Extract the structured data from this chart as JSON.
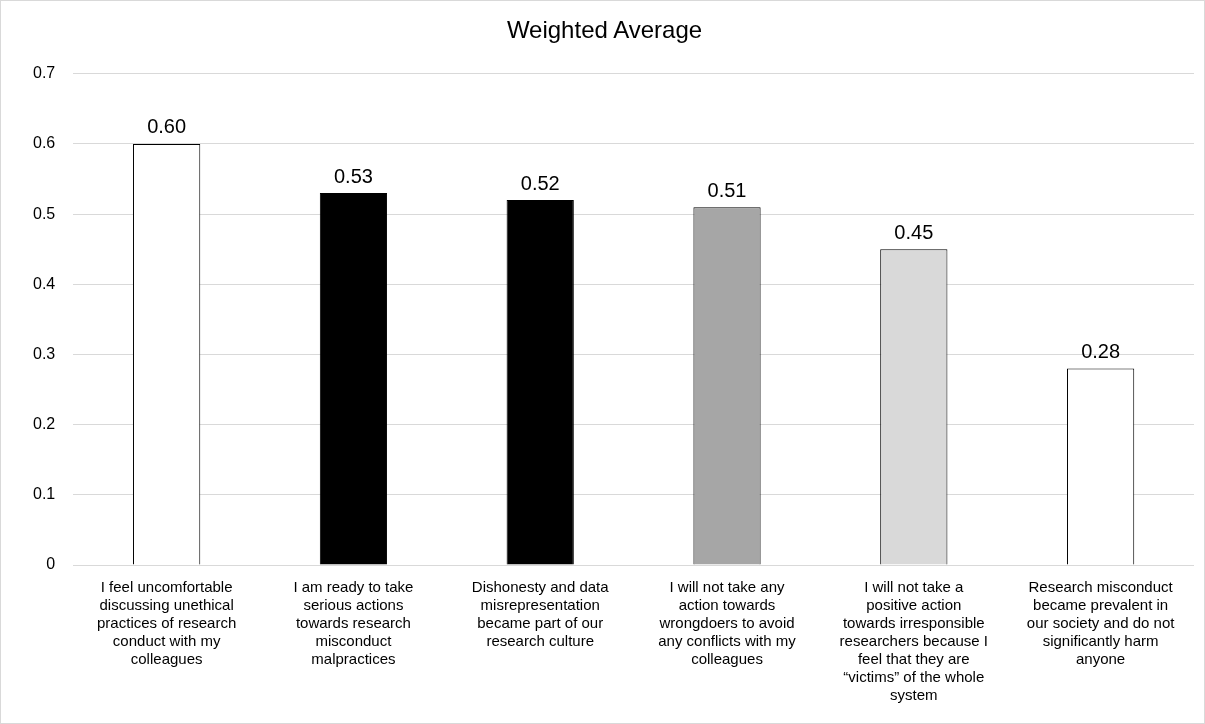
{
  "chart_data": {
    "type": "bar",
    "title": "Weighted Average",
    "categories": [
      "I feel uncomfortable discussing unethical practices of research conduct with my colleagues",
      "I am ready to take serious actions towards research misconduct malpractices",
      "Dishonesty and data misrepresentation became part of our research culture",
      "I will not take any action towards wrongdoers to avoid any conflicts with my colleagues",
      "I will not take a positive action towards irresponsible researchers because I feel that they are “victims” of the whole system",
      "Research misconduct became prevalent in our society and do not significantly harm anyone"
    ],
    "values": [
      0.6,
      0.53,
      0.52,
      0.51,
      0.45,
      0.28
    ],
    "value_labels": [
      "0.60",
      "0.53",
      "0.52",
      "0.51",
      "0.45",
      "0.28"
    ],
    "colors": [
      "#ffffff",
      "#000000",
      "#000000",
      "#a6a6a6",
      "#d9d9d9",
      "#ffffff"
    ],
    "ylim": [
      0,
      0.7
    ],
    "yticks": [
      0,
      0.1,
      0.2,
      0.3,
      0.4,
      0.5,
      0.6,
      0.7
    ],
    "grid": "y",
    "legend": false
  }
}
